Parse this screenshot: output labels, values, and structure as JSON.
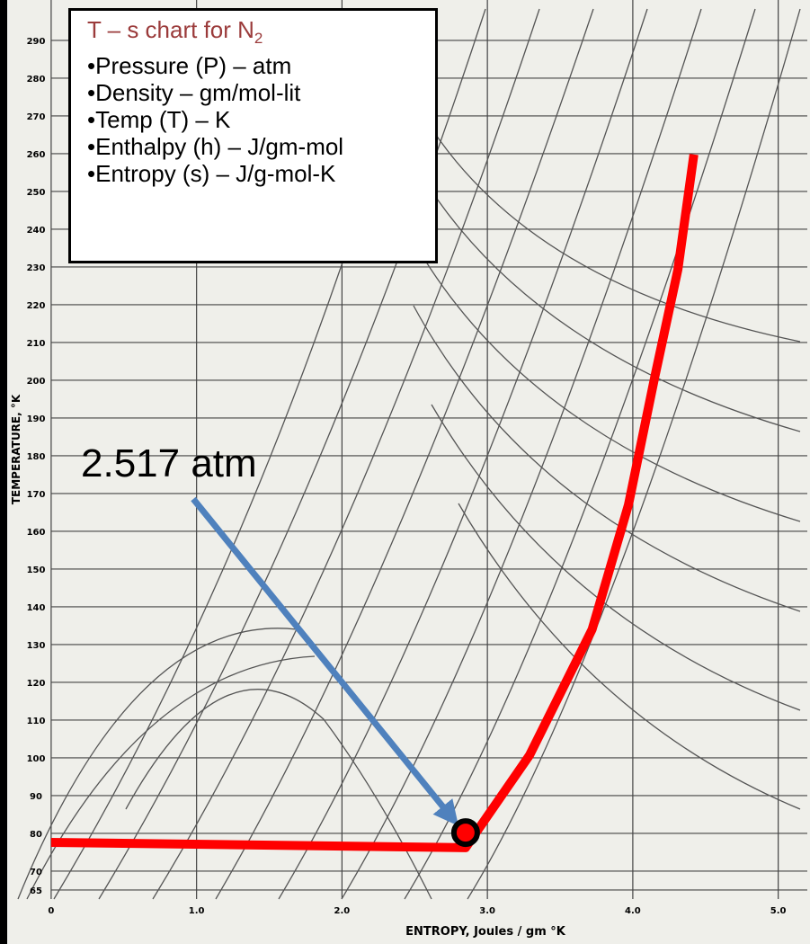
{
  "chart_data": {
    "type": "line",
    "x_label": "ENTROPY, Joules / gm °K",
    "y_label": "TEMPERATURE, °K",
    "xlim": [
      -0.29,
      5.2
    ],
    "ylim": [
      62.6,
      300.7
    ],
    "xticks": [
      0,
      {
        "value": 1,
        "label": "1.0"
      },
      {
        "value": 2,
        "label": "2.0"
      },
      {
        "value": 3,
        "label": "3.0"
      },
      {
        "value": 4,
        "label": "4.0"
      },
      {
        "value": 5,
        "label": "5.0"
      }
    ],
    "yticks": [
      65,
      70,
      80,
      90,
      100,
      110,
      120,
      130,
      140,
      150,
      160,
      170,
      180,
      190,
      200,
      210,
      220,
      230,
      240,
      250,
      260,
      270,
      280,
      290
    ],
    "grid": true,
    "series": [
      {
        "color": "#ff0000",
        "x": [
          0,
          2.85,
          3.29,
          3.72,
          3.97,
          4.15,
          4.31,
          4.42
        ],
        "values": [
          77.6,
          76.2,
          100.7,
          134,
          167,
          200.7,
          229.3,
          259.8
        ]
      }
    ],
    "point": {
      "x": 2.85,
      "y": 80.2,
      "color": "#ff0000"
    },
    "annotation": "2.517 atm",
    "info_box": {
      "title": "T – s chart for N",
      "title_subscript": "2",
      "items": [
        "•Pressure (P) – atm",
        "•Density – gm/mol-lit",
        "•Temp (T) – K",
        "•Enthalpy (h) – J/gm-mol",
        "•Entropy (s) – J/g-mol-K"
      ]
    }
  }
}
